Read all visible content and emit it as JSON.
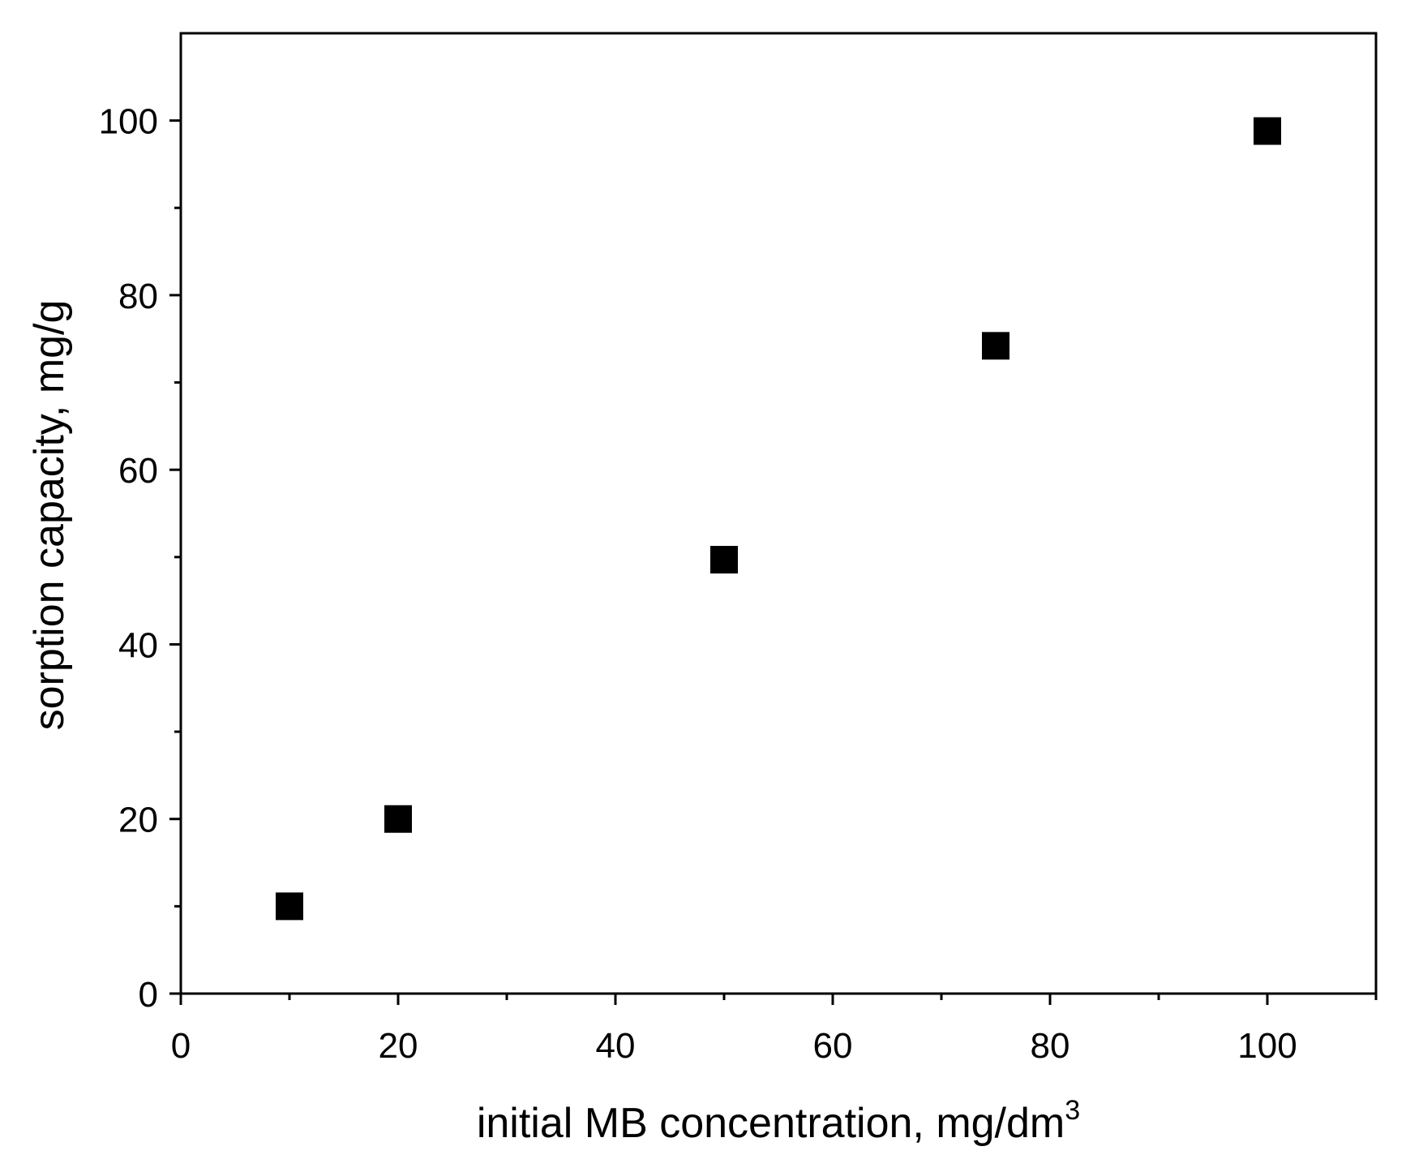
{
  "chart_data": {
    "type": "scatter",
    "title": "",
    "xlabel": "initial MB concentration, mg/dm",
    "xlabel_superscript": "3",
    "ylabel": "sorption capacity, mg/g",
    "xlim": [
      0,
      110
    ],
    "ylim": [
      0,
      110
    ],
    "x_ticks": [
      0,
      20,
      40,
      60,
      80,
      100
    ],
    "x_tick_labels": [
      "0",
      "20",
      "40",
      "60",
      "80",
      "100"
    ],
    "x_minor_ticks": [
      10,
      30,
      50,
      70,
      90,
      110
    ],
    "y_ticks": [
      0,
      20,
      40,
      60,
      80,
      100
    ],
    "y_tick_labels": [
      "0",
      "20",
      "40",
      "60",
      "80",
      "100"
    ],
    "y_minor_ticks": [
      10,
      30,
      50,
      70,
      90
    ],
    "grid": false,
    "legend": "none",
    "marker": "square",
    "marker_color": "#000000",
    "series": [
      {
        "x": [
          10,
          20,
          50,
          75,
          100
        ],
        "y": [
          10,
          20,
          49.7,
          74.2,
          98.8
        ]
      }
    ]
  }
}
